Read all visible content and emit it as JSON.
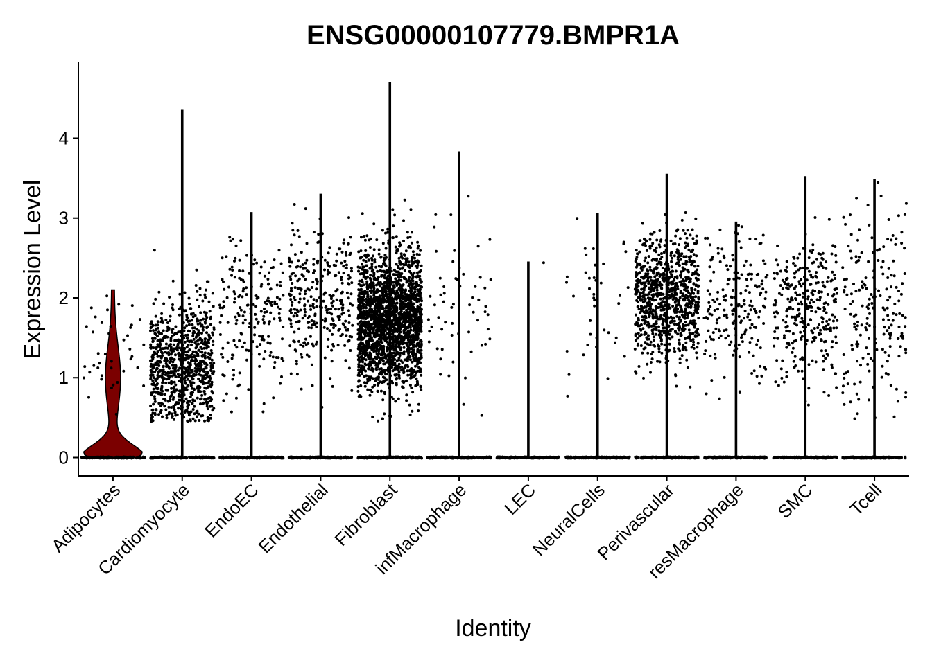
{
  "chart_data": {
    "type": "violin",
    "title": "ENSG00000107779.BMPR1A",
    "xlabel": "Identity",
    "ylabel": "Expression Level",
    "ylim": [
      -0.23,
      4.95
    ],
    "yticks": [
      0,
      1,
      2,
      3,
      4
    ],
    "grid": false,
    "legend": "none",
    "violin_color": "#7b0000",
    "point_color": "#000000",
    "categories": [
      "Adipocytes",
      "Cardiomyocyte",
      "EndoEC",
      "Endothelial",
      "Fibroblast",
      "infMacrophage",
      "LEC",
      "NeuralCells",
      "Perivascular",
      "resMacrophage",
      "SMC",
      "Tcell"
    ],
    "groups": [
      {
        "name": "Adipocytes",
        "max": 2.1,
        "n_expr": 40,
        "mean": 1.25,
        "sd": 0.4
      },
      {
        "name": "Cardiomyocyte",
        "max": 4.35,
        "n_expr": 900,
        "mean": 1.15,
        "sd": 0.38
      },
      {
        "name": "EndoEC",
        "max": 3.07,
        "n_expr": 200,
        "mean": 1.75,
        "sd": 0.45
      },
      {
        "name": "Endothelial",
        "max": 3.3,
        "n_expr": 320,
        "mean": 1.95,
        "sd": 0.45
      },
      {
        "name": "Fibroblast",
        "max": 4.7,
        "n_expr": 2200,
        "mean": 1.72,
        "sd": 0.42
      },
      {
        "name": "infMacrophage",
        "max": 3.83,
        "n_expr": 60,
        "mean": 1.75,
        "sd": 0.55
      },
      {
        "name": "LEC",
        "max": 2.45,
        "n_expr": 1,
        "mean": 2.44,
        "sd": 0.01
      },
      {
        "name": "NeuralCells",
        "max": 3.06,
        "n_expr": 40,
        "mean": 2.0,
        "sd": 0.55
      },
      {
        "name": "Perivascular",
        "max": 3.55,
        "n_expr": 950,
        "mean": 2.0,
        "sd": 0.38
      },
      {
        "name": "resMacrophage",
        "max": 2.95,
        "n_expr": 200,
        "mean": 1.9,
        "sd": 0.45
      },
      {
        "name": "SMC",
        "max": 3.52,
        "n_expr": 320,
        "mean": 1.85,
        "sd": 0.45
      },
      {
        "name": "Tcell",
        "max": 3.48,
        "n_expr": 200,
        "mean": 1.9,
        "sd": 0.55
      }
    ]
  }
}
